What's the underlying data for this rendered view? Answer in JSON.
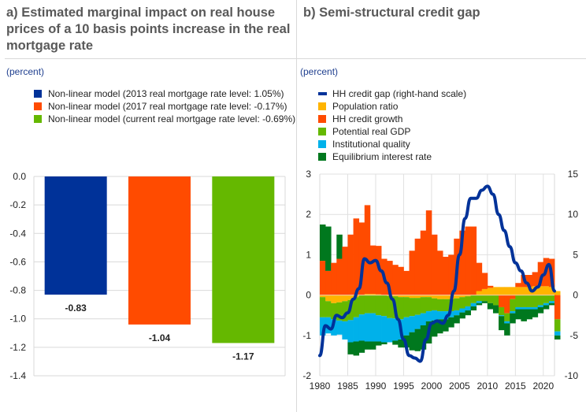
{
  "panels": {
    "a": {
      "title": "a) Estimated marginal impact on real house prices of a 10 basis points increase in the real mortgage rate",
      "unit": "(percent)"
    },
    "b": {
      "title": "b) Semi-structural credit gap",
      "unit": "(percent)"
    }
  },
  "chart_data": [
    {
      "type": "bar",
      "title": "a) Estimated marginal impact on real house prices of a 10 basis points increase in the real mortgage rate",
      "ylabel": "(percent)",
      "ylim": [
        -1.4,
        0.0
      ],
      "yticks": [
        "0.0",
        "-0.2",
        "-0.4",
        "-0.6",
        "-0.8",
        "-1.0",
        "-1.2",
        "-1.4"
      ],
      "grid": true,
      "legend_position": "top",
      "categories": [
        "Non-linear model (2013 real mortgage rate level: 1.05%)",
        "Non-linear model (2017 real mortgage rate level: -0.17%)",
        "Non-linear model (current real mortgage rate level: -0.69%)"
      ],
      "values": [
        -0.83,
        -1.04,
        -1.17
      ],
      "labels": [
        "-0.83",
        "-1.04",
        "-1.17"
      ],
      "colors": [
        "#003299",
        "#ff4b00",
        "#65b800"
      ]
    },
    {
      "type": "bar",
      "subtype": "stacked bar + line (dual axis)",
      "title": "b) Semi-structural credit gap",
      "ylabel": "(percent)",
      "ylim": [
        -2,
        3
      ],
      "yticks": [
        "3",
        "2",
        "1",
        "0",
        "-1",
        "-2"
      ],
      "y2lim": [
        -10,
        15
      ],
      "y2ticks": [
        "15",
        "10",
        "5",
        "0",
        "-5",
        "-10"
      ],
      "xlim": [
        1980,
        2022
      ],
      "xticks": [
        "1980",
        "1985",
        "1990",
        "1995",
        "2000",
        "2005",
        "2010",
        "2015",
        "2020"
      ],
      "grid": true,
      "legend_position": "top",
      "x": [
        1980,
        1981,
        1982,
        1983,
        1984,
        1985,
        1986,
        1987,
        1988,
        1989,
        1990,
        1991,
        1992,
        1993,
        1994,
        1995,
        1996,
        1997,
        1998,
        1999,
        2000,
        2001,
        2002,
        2003,
        2004,
        2005,
        2006,
        2007,
        2008,
        2009,
        2010,
        2011,
        2012,
        2013,
        2014,
        2015,
        2016,
        2017,
        2018,
        2019,
        2020,
        2021,
        2022
      ],
      "series": [
        {
          "name": "HH credit gap (right-hand scale)",
          "kind": "line",
          "axis": "right",
          "color": "#003299",
          "values": [
            -7.5,
            -3.8,
            -4.2,
            -2.5,
            -2.8,
            -2.2,
            -0.5,
            0.8,
            4.5,
            4.0,
            4.3,
            3.0,
            1.5,
            -0.5,
            -3.0,
            -5.5,
            -7.5,
            -7.8,
            -8.2,
            -5.5,
            -3.5,
            -3.2,
            -3.5,
            -2.5,
            0.5,
            5.0,
            9.5,
            12.0,
            12.0,
            13.0,
            13.5,
            12.5,
            10.0,
            8.0,
            6.0,
            4.0,
            3.0,
            1.5,
            0.5,
            1.0,
            2.5,
            3.8,
            0.5
          ]
        },
        {
          "name": "Population ratio",
          "kind": "bar",
          "axis": "left",
          "color": "#ffb400",
          "values": [
            -0.05,
            -0.15,
            -0.2,
            -0.18,
            -0.15,
            -0.12,
            -0.05,
            0,
            0.03,
            0.03,
            0.02,
            0,
            -0.02,
            -0.03,
            -0.05,
            -0.05,
            -0.07,
            -0.07,
            -0.05,
            -0.05,
            -0.08,
            -0.1,
            -0.1,
            -0.1,
            -0.08,
            -0.05,
            -0.03,
            0.0,
            0.1,
            0.15,
            0.18,
            0.2,
            0.2,
            0.2,
            0.2,
            0.2,
            0.2,
            0.2,
            0.22,
            0.22,
            0.22,
            0.2,
            0.1
          ]
        },
        {
          "name": "HH credit growth",
          "kind": "bar",
          "axis": "left",
          "color": "#ff4b00",
          "values": [
            0.85,
            0.6,
            0.8,
            0.9,
            1.2,
            1.5,
            1.9,
            1.8,
            2.2,
            1.2,
            1.2,
            0.9,
            0.85,
            0.75,
            0.7,
            0.6,
            1.1,
            1.4,
            1.6,
            2.1,
            1.5,
            1.1,
            0.95,
            1.0,
            1.4,
            1.6,
            1.7,
            1.7,
            0.7,
            0.4,
            0.05,
            0,
            -0.3,
            -0.45,
            -0.1,
            0.1,
            0.3,
            0.3,
            0.35,
            0.6,
            0.7,
            0.7,
            -0.6
          ]
        },
        {
          "name": "Potential real GDP",
          "kind": "bar",
          "axis": "left",
          "color": "#65b800",
          "values": [
            -0.5,
            -0.4,
            -0.4,
            -0.45,
            -0.5,
            -0.5,
            -0.5,
            -0.48,
            -0.45,
            -0.45,
            -0.5,
            -0.52,
            -0.55,
            -0.55,
            -0.55,
            -0.5,
            -0.45,
            -0.42,
            -0.4,
            -0.35,
            -0.3,
            -0.3,
            -0.3,
            -0.3,
            -0.3,
            -0.28,
            -0.25,
            -0.2,
            -0.15,
            -0.15,
            -0.2,
            -0.25,
            -0.2,
            -0.2,
            -0.3,
            -0.3,
            -0.3,
            -0.3,
            -0.3,
            -0.25,
            -0.2,
            -0.15,
            -0.3
          ]
        },
        {
          "name": "Institutional quality",
          "kind": "bar",
          "axis": "left",
          "color": "#00b1ea",
          "values": [
            -0.45,
            -0.4,
            -0.4,
            -0.35,
            -0.45,
            -0.55,
            -0.6,
            -0.65,
            -0.7,
            -0.7,
            -0.65,
            -0.65,
            -0.6,
            -0.55,
            -0.5,
            -0.45,
            -0.4,
            -0.35,
            -0.3,
            -0.25,
            -0.25,
            -0.2,
            -0.2,
            -0.15,
            -0.12,
            -0.1,
            -0.1,
            -0.08,
            -0.05,
            0,
            0,
            0,
            -0.02,
            -0.05,
            -0.05,
            -0.05,
            -0.05,
            -0.05,
            -0.05,
            -0.05,
            -0.05,
            -0.05,
            -0.1
          ]
        },
        {
          "name": "Equilibrium interest rate",
          "kind": "bar",
          "axis": "left",
          "color": "#00781e",
          "values": [
            0.9,
            1.1,
            0.0,
            0.6,
            0.0,
            -0.3,
            -0.35,
            -0.3,
            -0.2,
            -0.2,
            -0.1,
            -0.05,
            0.0,
            -0.1,
            -0.2,
            -0.3,
            -0.45,
            -0.55,
            -0.6,
            -0.55,
            -0.4,
            -0.35,
            -0.3,
            -0.25,
            -0.2,
            -0.15,
            -0.12,
            -0.1,
            -0.05,
            -0.05,
            -0.15,
            -0.2,
            -0.35,
            -0.3,
            -0.25,
            -0.25,
            -0.3,
            -0.25,
            -0.2,
            -0.15,
            -0.1,
            -0.05,
            -0.1
          ]
        }
      ]
    }
  ]
}
